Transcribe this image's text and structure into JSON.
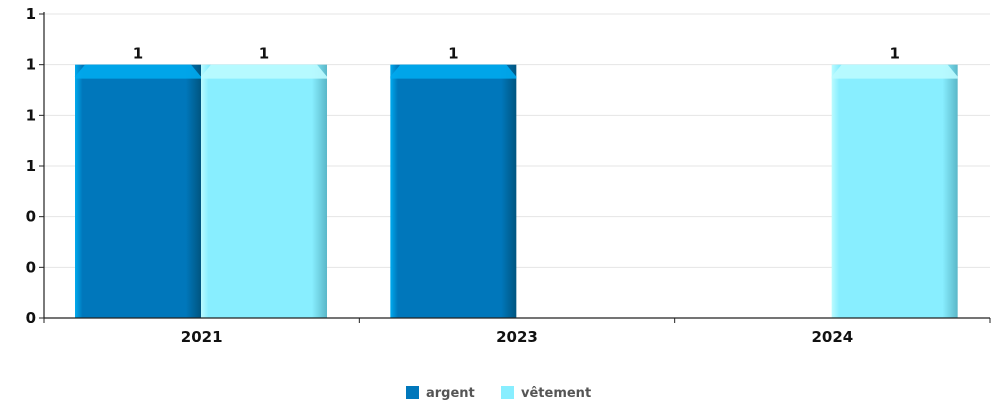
{
  "chart_data": {
    "type": "bar",
    "categories": [
      "2021",
      "2023",
      "2024"
    ],
    "series": [
      {
        "name": "argent",
        "values": [
          1,
          1,
          0
        ],
        "color": "#0077bb"
      },
      {
        "name": "vêtement",
        "values": [
          1,
          0,
          1
        ],
        "color": "#88eeff"
      }
    ],
    "y_ticks": [
      "0",
      "0",
      "0",
      "1",
      "1",
      "1",
      "1"
    ],
    "data_labels": [
      [
        "1",
        "1",
        null
      ],
      [
        "1",
        null,
        "1"
      ]
    ],
    "ylim": [
      0,
      1.2
    ],
    "grid": true,
    "legend": "bottom-center"
  }
}
